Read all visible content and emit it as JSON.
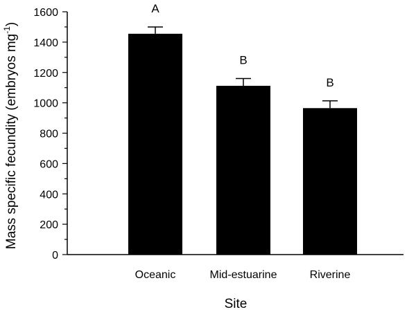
{
  "chart_data": {
    "type": "bar",
    "xlabel": "Site",
    "ylabel": "Mass specific fecundity (embryos mg",
    "ylabel_superscript": "-1",
    "ylabel_suffix": ")",
    "ylim": [
      0,
      1600
    ],
    "yticks": [
      0,
      200,
      400,
      600,
      800,
      1000,
      1200,
      1400,
      1600
    ],
    "categories": [
      "Oceanic",
      "Mid-estuarine",
      "Riverine"
    ],
    "values": [
      1455,
      1112,
      965
    ],
    "errors": [
      45,
      48,
      48
    ],
    "significance": [
      "A",
      "B",
      "B"
    ],
    "bar_color": "#000000",
    "grid": false,
    "legend": "none"
  }
}
